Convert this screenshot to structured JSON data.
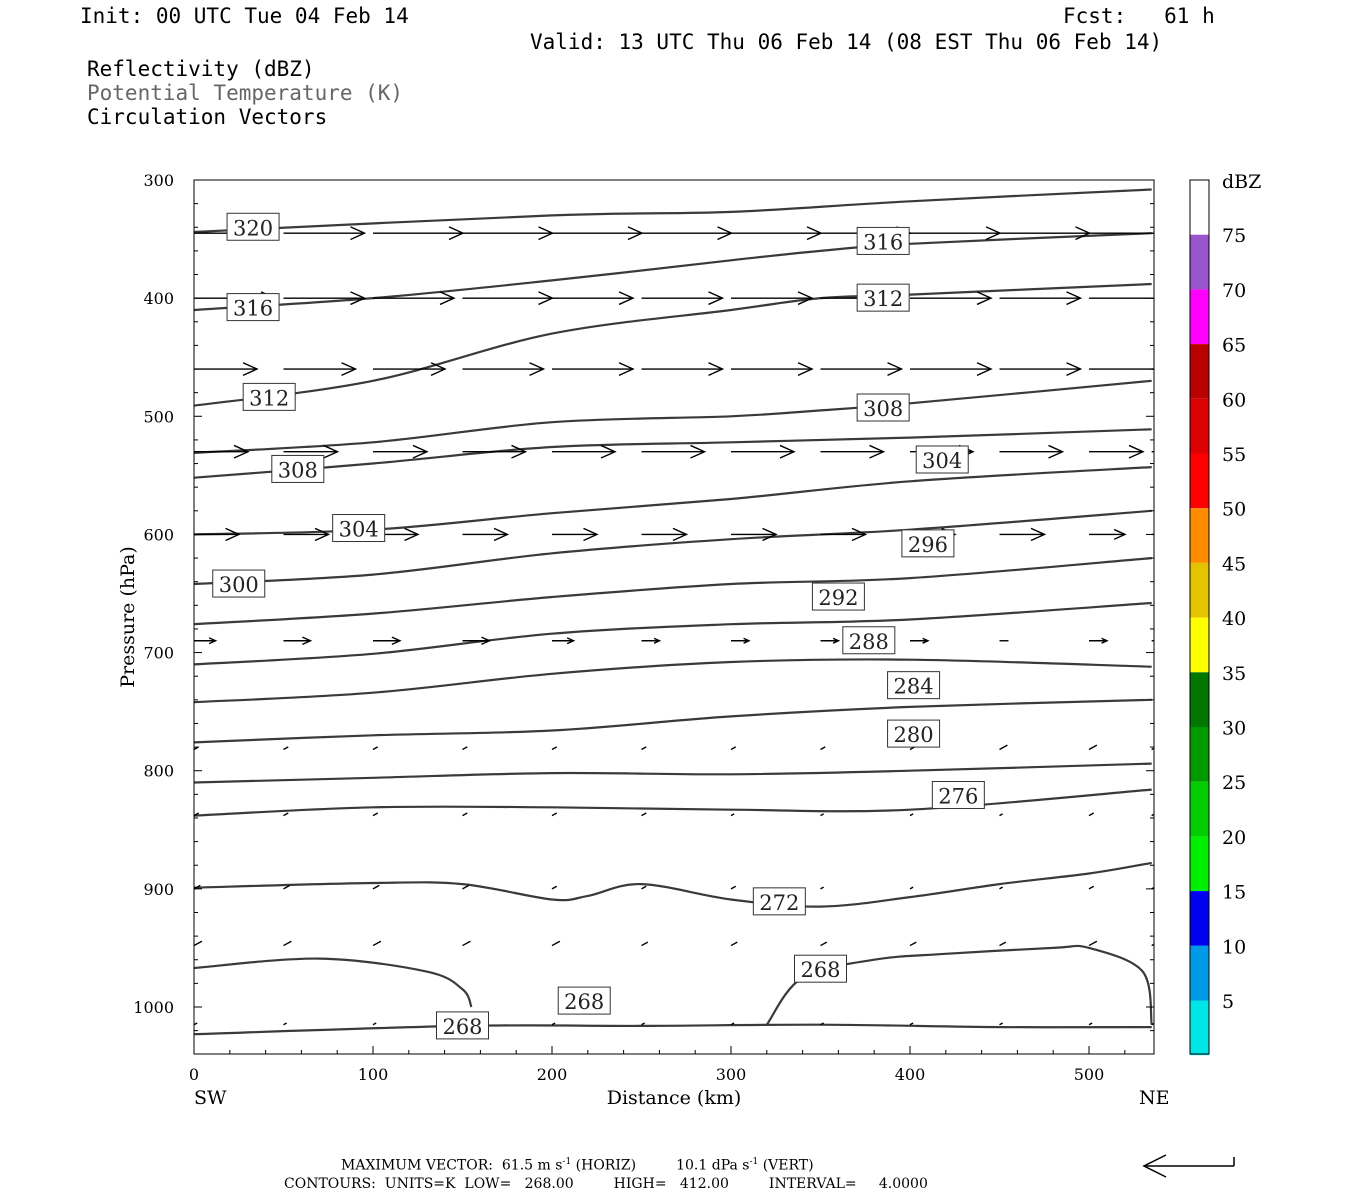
{
  "header": {
    "init": "Init: 00 UTC Tue 04 Feb 14",
    "fcst": "Fcst:   61 h",
    "valid": "Valid: 13 UTC Thu 06 Feb 14 (08 EST Thu 06 Feb 14)"
  },
  "fields": {
    "reflectivity": "Reflectivity (dBZ)",
    "theta": "Potential Temperature (K)",
    "vectors": "Circulation Vectors"
  },
  "colors": {
    "contour": "#3a3a3a",
    "theta_label": "#666666",
    "colorbar": [
      "#ffffff",
      "#00e5e5",
      "#0099e5",
      "#0000ee",
      "#00ee00",
      "#00cc00",
      "#009900",
      "#007700",
      "#ffff00",
      "#e6c300",
      "#ff8c00",
      "#ff0000",
      "#dd0000",
      "#bb0000",
      "#ff00ff",
      "#9955cc",
      "#ffffff"
    ]
  },
  "colorbar": {
    "unit": "dBZ",
    "labels": [
      "5",
      "10",
      "15",
      "20",
      "25",
      "30",
      "35",
      "40",
      "45",
      "50",
      "55",
      "60",
      "65",
      "70",
      "75"
    ]
  },
  "chart_data": {
    "type": "cross-section",
    "xlabel": "Distance (km)",
    "ylabel": "Pressure (hPa)",
    "xlim": [
      0,
      535
    ],
    "ylim": [
      1040,
      300
    ],
    "xticks": [
      0,
      100,
      200,
      300,
      400,
      500
    ],
    "yticks": [
      300,
      400,
      500,
      600,
      700,
      800,
      900,
      1000
    ],
    "x_end_labels": {
      "left": "SW",
      "right": "NE"
    },
    "theta_contours": [
      {
        "value": 320,
        "x": [
          0,
          200,
          300,
          400,
          535
        ],
        "p": [
          344,
          330,
          327,
          318,
          308
        ]
      },
      {
        "value": 316,
        "x": [
          0,
          100,
          200,
          300,
          350,
          400,
          535
        ],
        "p": [
          410,
          400,
          385,
          368,
          360,
          354,
          345
        ]
      },
      {
        "value": 312,
        "x": [
          0,
          100,
          200,
          300,
          350,
          400,
          535
        ],
        "p": [
          491,
          470,
          430,
          410,
          400,
          397,
          388
        ]
      },
      {
        "value": 308,
        "x": [
          0,
          100,
          200,
          300,
          350,
          400,
          535
        ],
        "p": [
          531,
          522,
          505,
          500,
          495,
          489,
          470
        ]
      },
      {
        "value": 304,
        "x": [
          0,
          100,
          200,
          300,
          400,
          535
        ],
        "p": [
          552,
          540,
          526,
          522,
          518,
          511
        ]
      },
      {
        "value": 300,
        "x": [
          0,
          100,
          200,
          300,
          400,
          535
        ],
        "p": [
          600,
          596,
          582,
          570,
          555,
          543
        ]
      },
      {
        "value": 296,
        "x": [
          0,
          100,
          200,
          300,
          400,
          535
        ],
        "p": [
          642,
          634,
          616,
          604,
          596,
          580
        ]
      },
      {
        "value": 292,
        "x": [
          0,
          100,
          200,
          300,
          400,
          535
        ],
        "p": [
          676,
          667,
          653,
          642,
          637,
          620
        ]
      },
      {
        "value": 288,
        "x": [
          0,
          100,
          200,
          300,
          400,
          535
        ],
        "p": [
          710,
          701,
          684,
          676,
          672,
          658
        ]
      },
      {
        "value": 284,
        "x": [
          0,
          100,
          200,
          300,
          400,
          535
        ],
        "p": [
          742,
          734,
          718,
          708,
          706,
          712
        ]
      },
      {
        "value": 280,
        "x": [
          0,
          100,
          200,
          300,
          400,
          535
        ],
        "p": [
          776,
          770,
          766,
          754,
          746,
          740
        ]
      },
      {
        "value": 276,
        "x": [
          0,
          100,
          200,
          300,
          400,
          535
        ],
        "p": [
          810,
          806,
          802,
          803,
          800,
          794
        ]
      },
      {
        "value": 272,
        "x": [
          0,
          100,
          200,
          300,
          400,
          535
        ],
        "p": [
          838,
          831,
          831,
          833,
          833,
          816
        ]
      },
      {
        "value": 268,
        "x": [
          0,
          100,
          150,
          200,
          220,
          250,
          300,
          350,
          400,
          450,
          500,
          535
        ],
        "p": [
          899,
          895,
          896,
          909,
          906,
          896,
          909,
          915,
          907,
          896,
          887,
          878
        ]
      },
      {
        "value": 268,
        "x": [
          0,
          70,
          130,
          150,
          155
        ],
        "p": [
          967,
          959,
          970,
          985,
          1000
        ]
      },
      {
        "value": 268,
        "x": [
          320,
          340,
          380,
          420,
          480,
          500,
          530,
          535
        ],
        "p": [
          1015,
          975,
          960,
          955,
          950,
          950,
          970,
          1015
        ]
      },
      {
        "value": 268,
        "x": [
          0,
          150,
          250,
          350,
          450,
          535
        ],
        "p": [
          1023,
          1016,
          1016,
          1015,
          1017,
          1017
        ]
      }
    ],
    "contour_labels": [
      {
        "text": "320",
        "x": 33,
        "p": 340
      },
      {
        "text": "316",
        "x": 33,
        "p": 408
      },
      {
        "text": "312",
        "x": 42,
        "p": 484
      },
      {
        "text": "308",
        "x": 58,
        "p": 545
      },
      {
        "text": "304",
        "x": 92,
        "p": 595
      },
      {
        "text": "300",
        "x": 25,
        "p": 642
      },
      {
        "text": "316",
        "x": 385,
        "p": 352
      },
      {
        "text": "312",
        "x": 385,
        "p": 400
      },
      {
        "text": "308",
        "x": 385,
        "p": 493
      },
      {
        "text": "304",
        "x": 418,
        "p": 537
      },
      {
        "text": "296",
        "x": 410,
        "p": 608
      },
      {
        "text": "292",
        "x": 360,
        "p": 653
      },
      {
        "text": "288",
        "x": 377,
        "p": 690
      },
      {
        "text": "284",
        "x": 402,
        "p": 728
      },
      {
        "text": "280",
        "x": 402,
        "p": 769
      },
      {
        "text": "276",
        "x": 427,
        "p": 821
      },
      {
        "text": "272",
        "x": 327,
        "p": 911
      },
      {
        "text": "268",
        "x": 350,
        "p": 968
      },
      {
        "text": "268",
        "x": 218,
        "p": 995
      },
      {
        "text": "268",
        "x": 150,
        "p": 1016
      }
    ],
    "vectors": {
      "x": [
        0,
        50,
        100,
        150,
        200,
        250,
        300,
        350,
        400,
        450,
        500,
        535
      ],
      "levels": [
        {
          "p": 345,
          "u": [
            45,
            45,
            50,
            50,
            50,
            50,
            50,
            50,
            50,
            50,
            50,
            30
          ]
        },
        {
          "p": 400,
          "u": [
            45,
            45,
            45,
            50,
            45,
            45,
            45,
            40,
            45,
            45,
            45,
            30
          ]
        },
        {
          "p": 460,
          "u": [
            35,
            40,
            40,
            45,
            45,
            45,
            45,
            45,
            45,
            45,
            45,
            35
          ]
        },
        {
          "p": 530,
          "u": [
            30,
            30,
            30,
            35,
            35,
            35,
            35,
            35,
            35,
            35,
            30,
            30
          ]
        },
        {
          "p": 600,
          "u": [
            25,
            25,
            25,
            25,
            25,
            25,
            25,
            25,
            25,
            25,
            20,
            15
          ]
        },
        {
          "p": 690,
          "u": [
            12,
            15,
            15,
            15,
            12,
            10,
            10,
            10,
            10,
            5,
            10,
            5
          ]
        },
        {
          "p": 782,
          "u": [
            3,
            3,
            3,
            3,
            3,
            3,
            3,
            3,
            3,
            5,
            5,
            3
          ]
        },
        {
          "p": 838,
          "u": [
            3,
            3,
            3,
            3,
            3,
            3,
            2,
            2,
            2,
            2,
            3,
            3
          ]
        },
        {
          "p": 900,
          "u": [
            4,
            4,
            4,
            4,
            3,
            3,
            3,
            2,
            2,
            2,
            3,
            3
          ]
        },
        {
          "p": 948,
          "u": [
            5,
            5,
            5,
            5,
            5,
            4,
            4,
            4,
            4,
            4,
            5,
            4
          ]
        },
        {
          "p": 1015,
          "u": [
            2,
            2,
            2,
            2,
            2,
            2,
            2,
            2,
            2,
            2,
            2,
            2
          ]
        }
      ]
    }
  },
  "footer": {
    "max_vector": "MAXIMUM VECTOR:  61.5 m s",
    "max_vector_mid": " (HORIZ)         10.1 dPa s",
    "max_vector_tail": " (VERT)",
    "exp": "-1",
    "contours": "CONTOURS:  UNITS=K  LOW=   268.00         HIGH=   412.00         INTERVAL=     4.0000"
  }
}
